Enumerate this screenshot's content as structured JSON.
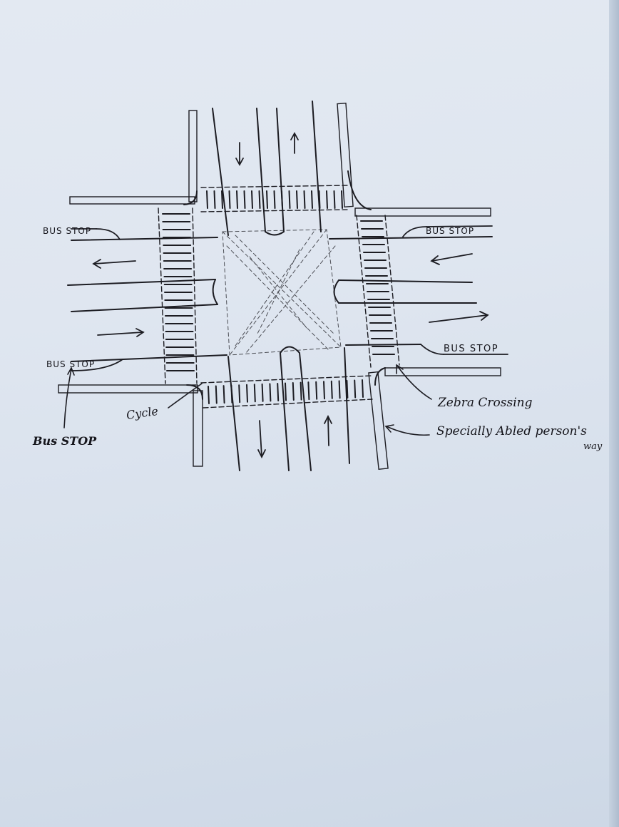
{
  "labels": {
    "bus_stop_top_left": "BUS STOP",
    "bus_stop_top_right": "BUS STOP",
    "bus_stop_bottom_left": "BUS STOP",
    "bus_stop_bottom_right": "BUS STOP",
    "bus_stop_callout": "Bus STOP",
    "cycle": "Cycle",
    "zebra_crossing": "Zebra Crossing",
    "specially_abled_line1": "Specially Abled person's",
    "specially_abled_line2": "way"
  },
  "colors": {
    "ink": "#1c1c22",
    "paper": "#dfe6f0"
  }
}
